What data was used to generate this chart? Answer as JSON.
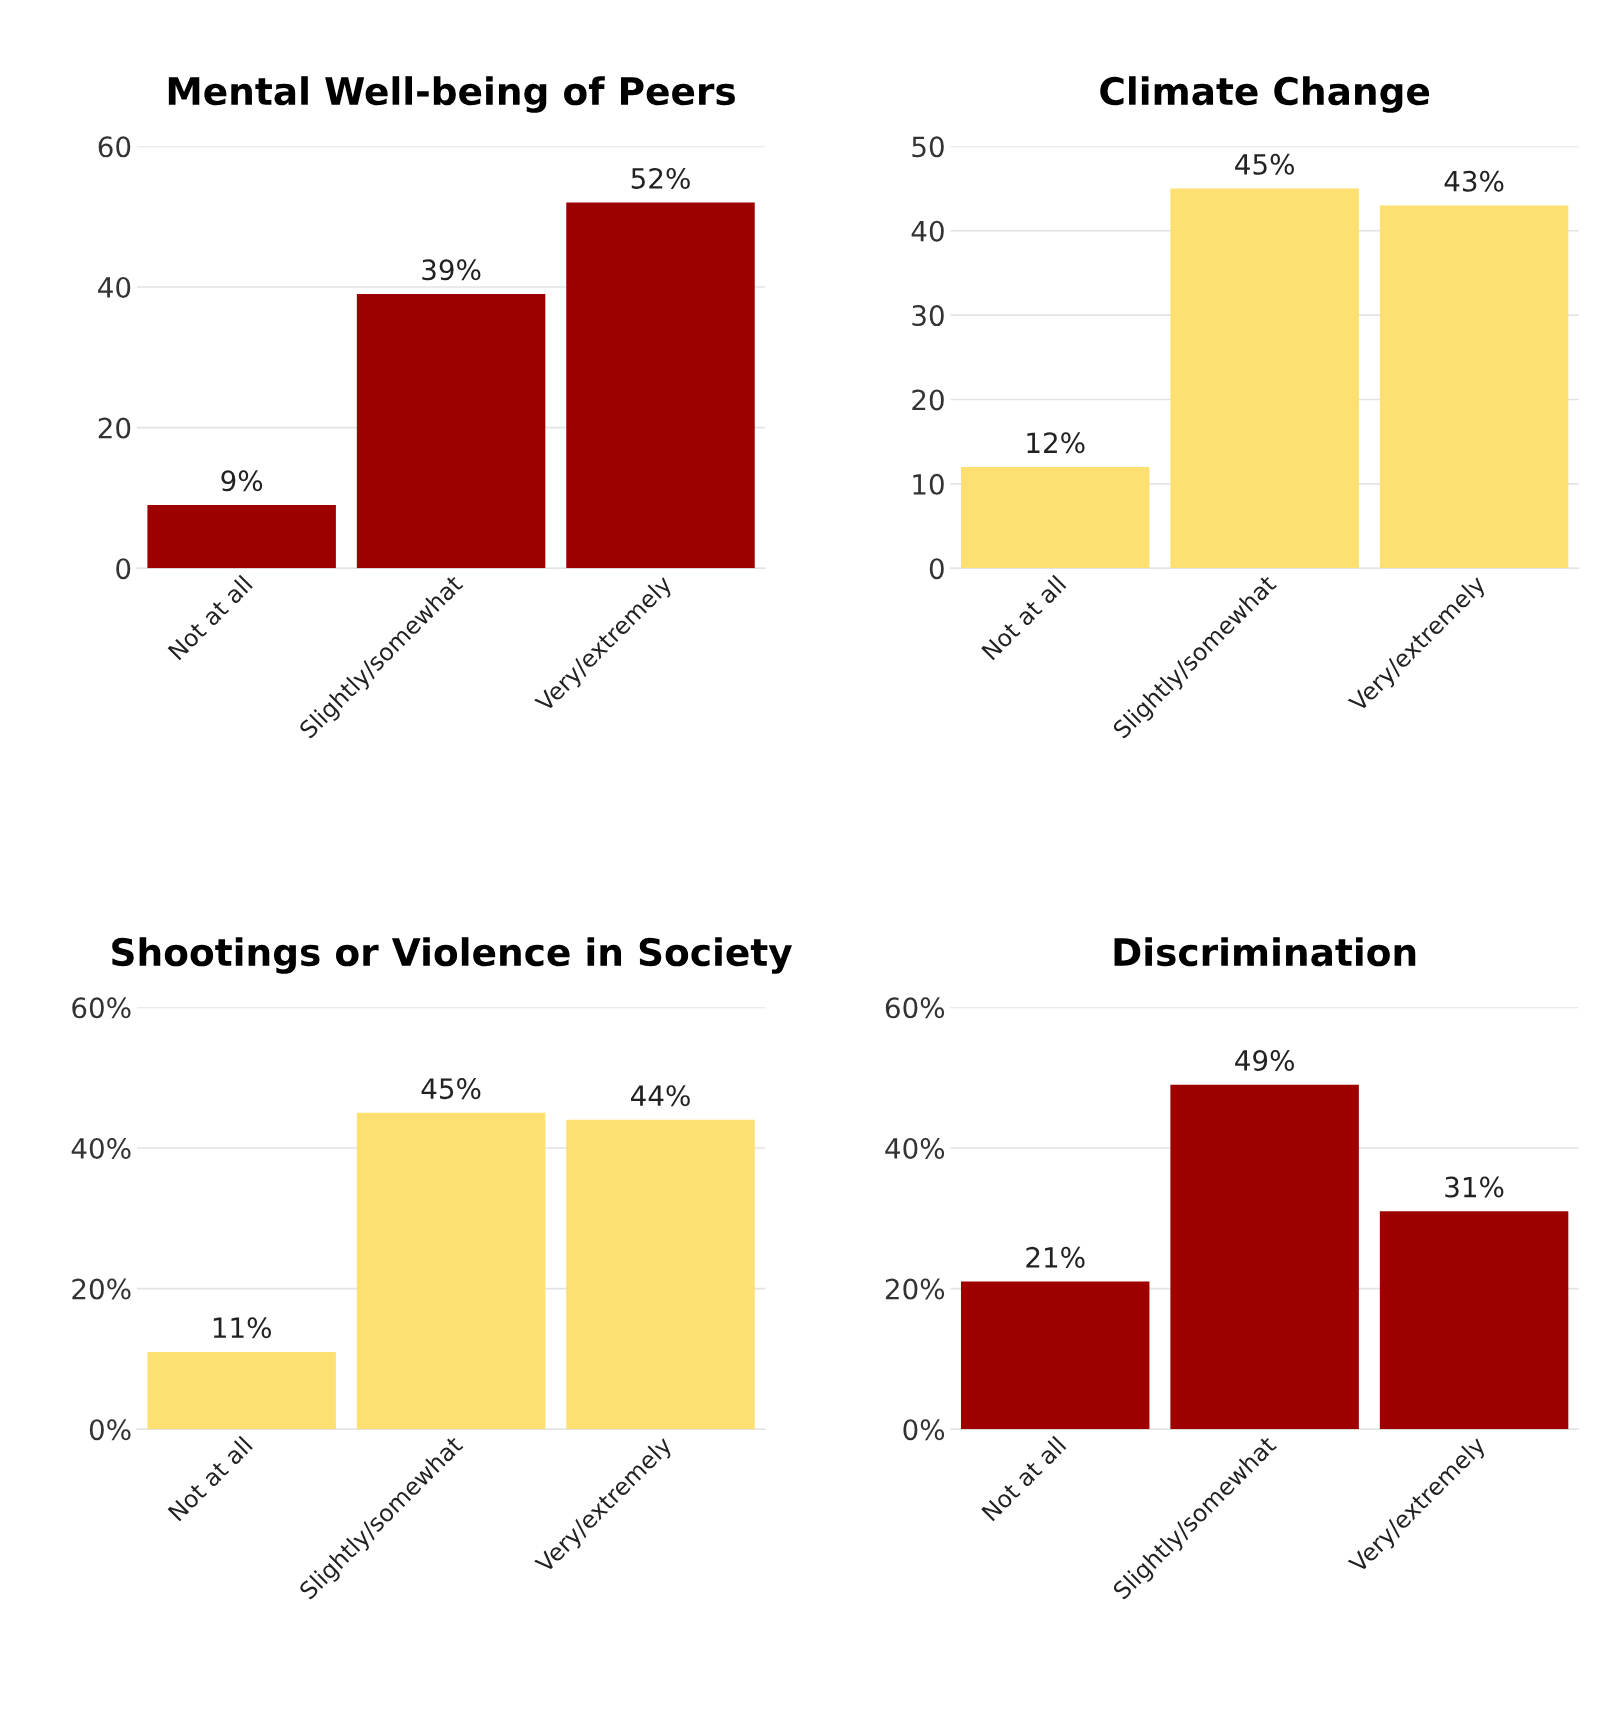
{
  "chart_data": [
    {
      "type": "bar",
      "title": "Mental Well-being of Peers",
      "categories": [
        "Not at all",
        "Slightly/somewhat",
        "Very/extremely"
      ],
      "values": [
        9,
        39,
        52
      ],
      "value_labels": [
        "9%",
        "39%",
        "52%"
      ],
      "color": "#9e0000",
      "ylim": [
        0,
        60
      ],
      "yticks": [
        0,
        20,
        40,
        60
      ],
      "grid": "y"
    },
    {
      "type": "bar",
      "title": "Climate Change",
      "categories": [
        "Not at all",
        "Slightly/somewhat",
        "Very/extremely"
      ],
      "values": [
        12,
        45,
        43
      ],
      "value_labels": [
        "12%",
        "45%",
        "43%"
      ],
      "color": "#fddf72",
      "ylim": [
        0,
        50
      ],
      "yticks": [
        0,
        10,
        20,
        30,
        40,
        50
      ],
      "grid": "y"
    },
    {
      "type": "bar",
      "title": "Shootings or Violence in Society",
      "categories": [
        "Not at all",
        "Slightly/somewhat",
        "Very/extremely"
      ],
      "values": [
        11,
        45,
        44
      ],
      "value_labels": [
        "11%",
        "45%",
        "44%"
      ],
      "color": "#fddf72",
      "ylim": [
        0,
        60
      ],
      "yticks": [
        {
          "value": 0,
          "label": "0%"
        },
        {
          "value": 20,
          "label": "20%"
        },
        {
          "value": 40,
          "label": "40%"
        },
        {
          "value": 60,
          "label": "60%"
        }
      ],
      "grid": "y"
    },
    {
      "type": "bar",
      "title": "Discrimination",
      "categories": [
        "Not at all",
        "Slightly/somewhat",
        "Very/extremely"
      ],
      "values": [
        21,
        49,
        31
      ],
      "value_labels": [
        "21%",
        "49%",
        "31%"
      ],
      "color": "#9e0000",
      "ylim": [
        0,
        60
      ],
      "yticks": [
        {
          "value": 0,
          "label": "0%"
        },
        {
          "value": 20,
          "label": "20%"
        },
        {
          "value": 40,
          "label": "40%"
        },
        {
          "value": 60,
          "label": "60%"
        }
      ],
      "grid": "y"
    }
  ]
}
